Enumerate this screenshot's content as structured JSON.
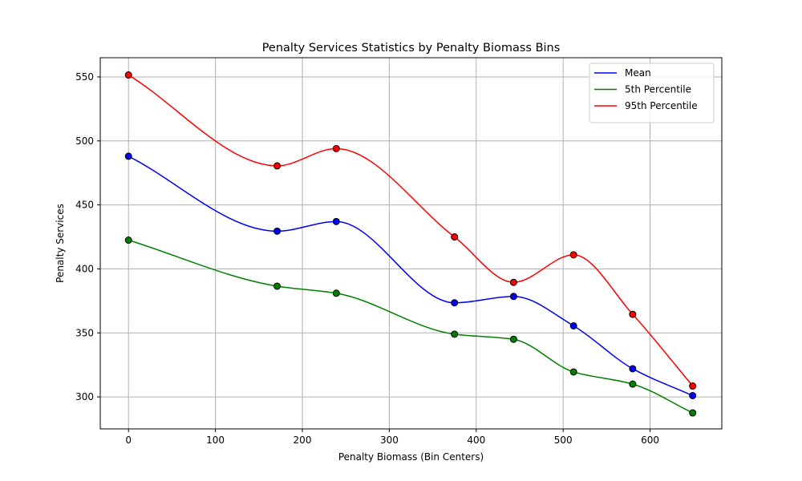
{
  "chart_data": {
    "type": "line",
    "title": "Penalty Services Statistics by Penalty Biomass Bins",
    "xlabel": "Penalty Biomass (Bin Centers)",
    "ylabel": "Penalty Services",
    "xlim": [
      -32.5,
      682.5
    ],
    "ylim": [
      275,
      565
    ],
    "x_ticks": [
      0,
      100,
      200,
      300,
      400,
      500,
      600
    ],
    "y_ticks": [
      300,
      350,
      400,
      450,
      500,
      550
    ],
    "grid": true,
    "legend_position": "top-right",
    "x": [
      0,
      171,
      239,
      375,
      443,
      512,
      580,
      649
    ],
    "series": [
      {
        "name": "Mean",
        "color": "#0000ff",
        "values": [
          488,
          429.5,
          437,
          373.5,
          378.5,
          355.5,
          322,
          301
        ]
      },
      {
        "name": "5th Percentile",
        "color": "#008000",
        "values": [
          422.5,
          386.5,
          381,
          349,
          345,
          319.5,
          310,
          287.5
        ]
      },
      {
        "name": "95th Percentile",
        "color": "#ff0000",
        "values": [
          551.5,
          480.5,
          494,
          425,
          389.5,
          411,
          364.5,
          308.5
        ]
      }
    ]
  }
}
